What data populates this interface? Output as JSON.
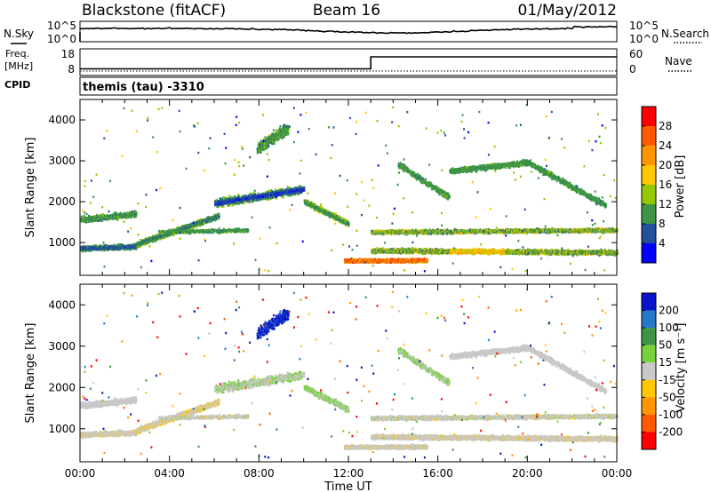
{
  "header": {
    "site": "Blackstone (fitACF)",
    "beam": "Beam 16",
    "date": "01/May/2012"
  },
  "noise_panel": {
    "left_label": "N.Sky",
    "right_label": "N.Search",
    "left_ticks": [
      "10^5",
      "10^0"
    ],
    "right_ticks": [
      "10^5",
      "10^0"
    ]
  },
  "freq_panel": {
    "left_label_1": "Freq.",
    "left_label_2": "[MHz]",
    "left_label_3": "CPID",
    "right_label": "Nave",
    "left_ticks": [
      "18",
      "8"
    ],
    "right_ticks": [
      "60",
      "0"
    ],
    "step_time_hours": 13.0,
    "freq_low_mhz": 10.5,
    "freq_high_mhz": 15.0
  },
  "cpid_text": "themis (tau) -3310",
  "chart_data": [
    {
      "type": "heatmap",
      "panel": "power",
      "ylabel": "Slant Range [km]",
      "xlabel": "",
      "x_range_hours": [
        0,
        24
      ],
      "ylim": [
        200,
        4500
      ],
      "yticks": [
        "1000",
        "2000",
        "3000",
        "4000"
      ],
      "colorbar": {
        "label": "Power [dB]",
        "ticks": [
          "28",
          "24",
          "20",
          "16",
          "12",
          "8",
          "4"
        ],
        "colors": [
          "#ff0000",
          "#ff5a00",
          "#ff9600",
          "#ffc800",
          "#96c800",
          "#3c9646",
          "#23509b",
          "#0000ff"
        ]
      },
      "features": [
        {
          "desc": "low-range band",
          "t_start": 0.0,
          "t_end": 2.5,
          "range_km": 850
        },
        {
          "desc": "rising band",
          "t_start": 2.5,
          "t_end": 6.0,
          "range_km": 1600
        },
        {
          "desc": "flat band",
          "t_start": 6.0,
          "t_end": 10.0,
          "range_km": 2100
        },
        {
          "desc": "descending band",
          "t_start": 10.0,
          "t_end": 12.0,
          "range_km": 1500
        },
        {
          "desc": "strong near-range echoes",
          "t_start": 11.8,
          "t_end": 15.5,
          "range_km": 550
        },
        {
          "desc": "patch near 08:30",
          "t_start": 7.9,
          "t_end": 9.3,
          "range_km": 3500
        },
        {
          "desc": "far-range arc",
          "t_start": 15.5,
          "t_end": 23.5,
          "range_km": 2800
        }
      ]
    },
    {
      "type": "heatmap",
      "panel": "velocity",
      "ylabel": "Slant Range [km]",
      "xlabel": "Time UT",
      "x_range_hours": [
        0,
        24
      ],
      "xticks": [
        "00:00",
        "04:00",
        "08:00",
        "12:00",
        "16:00",
        "20:00",
        "00:00"
      ],
      "ylim": [
        200,
        4500
      ],
      "yticks": [
        "1000",
        "2000",
        "3000",
        "4000"
      ],
      "colorbar": {
        "label": "Velocity [m s⁻¹]",
        "ticks": [
          "200",
          "100",
          "50",
          "15",
          "-15",
          "-50",
          "-100",
          "-200"
        ],
        "colors": [
          "#0a14c8",
          "#2878c8",
          "#3c9646",
          "#78d23c",
          "#c8c8c8",
          "#ffc800",
          "#ff9600",
          "#ff5a00",
          "#ff0000"
        ]
      }
    }
  ]
}
